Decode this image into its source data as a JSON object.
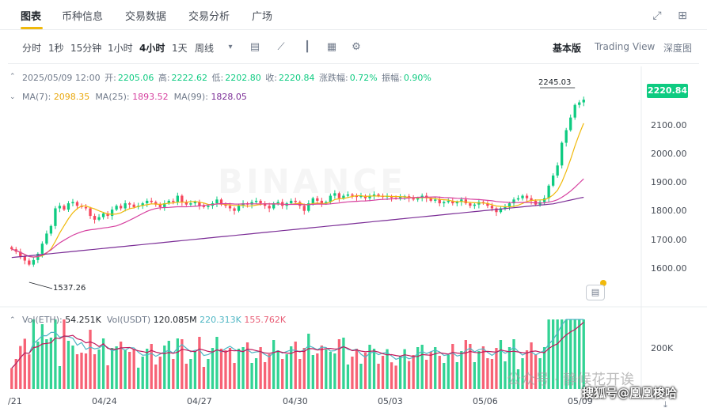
{
  "topnav": {
    "tabs": [
      {
        "label": "图表",
        "active": true
      },
      {
        "label": "币种信息",
        "active": false
      },
      {
        "label": "交易数据",
        "active": false
      },
      {
        "label": "交易分析",
        "active": false
      },
      {
        "label": "广场",
        "active": false
      }
    ],
    "icons": [
      "expand-icon",
      "grid-icon"
    ]
  },
  "toolbar": {
    "intervals": [
      {
        "label": "分时",
        "active": false
      },
      {
        "label": "1秒",
        "active": false
      },
      {
        "label": "15分钟",
        "active": false
      },
      {
        "label": "1小时",
        "active": false
      },
      {
        "label": "4小时",
        "active": true
      },
      {
        "label": "1天",
        "active": false
      },
      {
        "label": "周线",
        "active": false
      }
    ],
    "more_icon": "▾",
    "tool_icons": [
      "calendar-icon",
      "indicator-icon",
      "candle-type-icon",
      "layout-icon",
      "settings-icon"
    ],
    "views": [
      {
        "label": "基本版",
        "active": true
      },
      {
        "label": "Trading View",
        "active": false
      },
      {
        "label": "深度图",
        "active": false
      }
    ]
  },
  "ohlc": {
    "date": "2025/05/09 12:00",
    "open_label": "开:",
    "open": "2205.06",
    "high_label": "高:",
    "high": "2222.62",
    "low_label": "低:",
    "low": "2202.80",
    "close_label": "收:",
    "close": "2220.84",
    "change_label": "涨跌幅:",
    "change": "0.72%",
    "amplitude_label": "振幅:",
    "amplitude": "0.90%"
  },
  "ma": {
    "ma7_label": "MA(7):",
    "ma7": "2098.35",
    "ma25_label": "MA(25):",
    "ma25": "1893.52",
    "ma99_label": "MA(99):",
    "ma99": "1828.05"
  },
  "volume": {
    "eth_label": "Vol(ETH):",
    "eth": "54.251K",
    "usdt_label": "Vol(USDT)",
    "usdt": "120.085M",
    "ma1": "220.313K",
    "ma2": "155.762K",
    "axis_tick": "200K"
  },
  "price_tag": "2220.84",
  "high_marker": "2245.03",
  "low_marker": "1537.26",
  "watermark": "BINANCE",
  "overlay_text_1": "公众号 · 静候花开诶",
  "overlay_text_2": "搜狐号@凰凰梭哈",
  "colors": {
    "up": "#0ecb81",
    "down": "#f6465d",
    "ma7": "#f0b90b",
    "ma25": "#d6409f",
    "ma99": "#7b2d96",
    "vol_ma1": "#4fb6c4",
    "vol_ma2": "#c2185b",
    "accent": "#f0b90b"
  },
  "chart_data": {
    "type": "candlestick",
    "yaxis_ticks": [
      "2100.00",
      "2000.00",
      "1900.00",
      "1800.00",
      "1700.00",
      "1600.00"
    ],
    "xaxis_ticks": [
      "/21",
      "04/24",
      "04/27",
      "04/30",
      "05/03",
      "05/06",
      "05/09"
    ],
    "ylim": [
      1500,
      2290
    ],
    "series_ma": [
      "MA(7)",
      "MA(25)",
      "MA(99)"
    ],
    "close": [
      1628,
      1618,
      1600,
      1583,
      1567,
      1585,
      1610,
      1650,
      1690,
      1720,
      1790,
      1800,
      1785,
      1810,
      1815,
      1800,
      1795,
      1790,
      1760,
      1745,
      1755,
      1770,
      1760,
      1785,
      1800,
      1790,
      1810,
      1805,
      1795,
      1800,
      1810,
      1820,
      1815,
      1805,
      1795,
      1810,
      1820,
      1815,
      1840,
      1815,
      1805,
      1810,
      1815,
      1800,
      1795,
      1800,
      1810,
      1825,
      1805,
      1800,
      1790,
      1780,
      1800,
      1810,
      1805,
      1815,
      1820,
      1810,
      1800,
      1790,
      1810,
      1815,
      1800,
      1810,
      1820,
      1815,
      1800,
      1780,
      1810,
      1830,
      1820,
      1810,
      1815,
      1840,
      1850,
      1830,
      1840,
      1845,
      1840,
      1835,
      1840,
      1830,
      1840,
      1845,
      1840,
      1835,
      1838,
      1832,
      1830,
      1835,
      1838,
      1830,
      1825,
      1830,
      1840,
      1830,
      1820,
      1825,
      1810,
      1815,
      1820,
      1810,
      1815,
      1825,
      1810,
      1800,
      1805,
      1815,
      1810,
      1800,
      1790,
      1775,
      1790,
      1795,
      1810,
      1825,
      1830,
      1840,
      1830,
      1820,
      1805,
      1815,
      1830,
      1880,
      1920,
      1960,
      2050,
      2100,
      2150,
      2200,
      2210,
      2221
    ]
  }
}
